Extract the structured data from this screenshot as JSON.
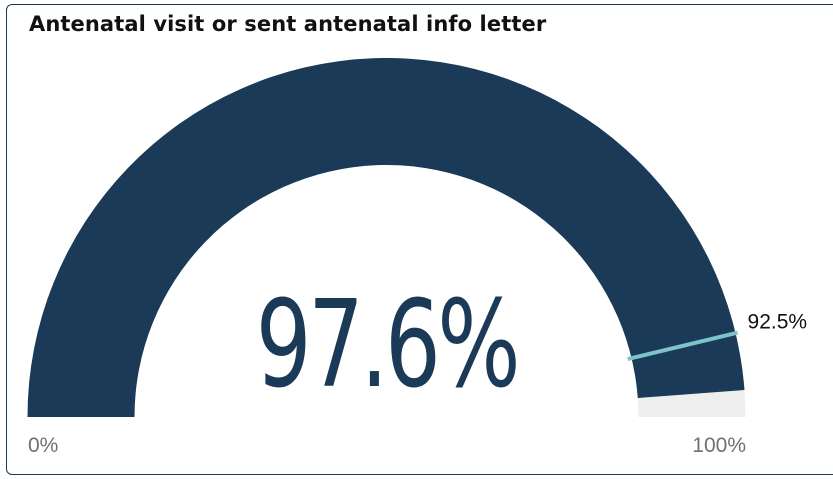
{
  "title": "Antenatal visit or sent antenatal info letter",
  "chart_data": {
    "type": "gauge",
    "title": "Antenatal visit or sent antenatal info letter",
    "value": 97.6,
    "value_label": "97.6%",
    "min": 0,
    "max": 100,
    "min_label": "0%",
    "max_label": "100%",
    "target": 92.5,
    "target_label": "92.5%",
    "colors": {
      "fill": "#1a3a57",
      "track": "#efeeee",
      "target": "#7ec3c8",
      "border": "#1a3a57"
    }
  }
}
